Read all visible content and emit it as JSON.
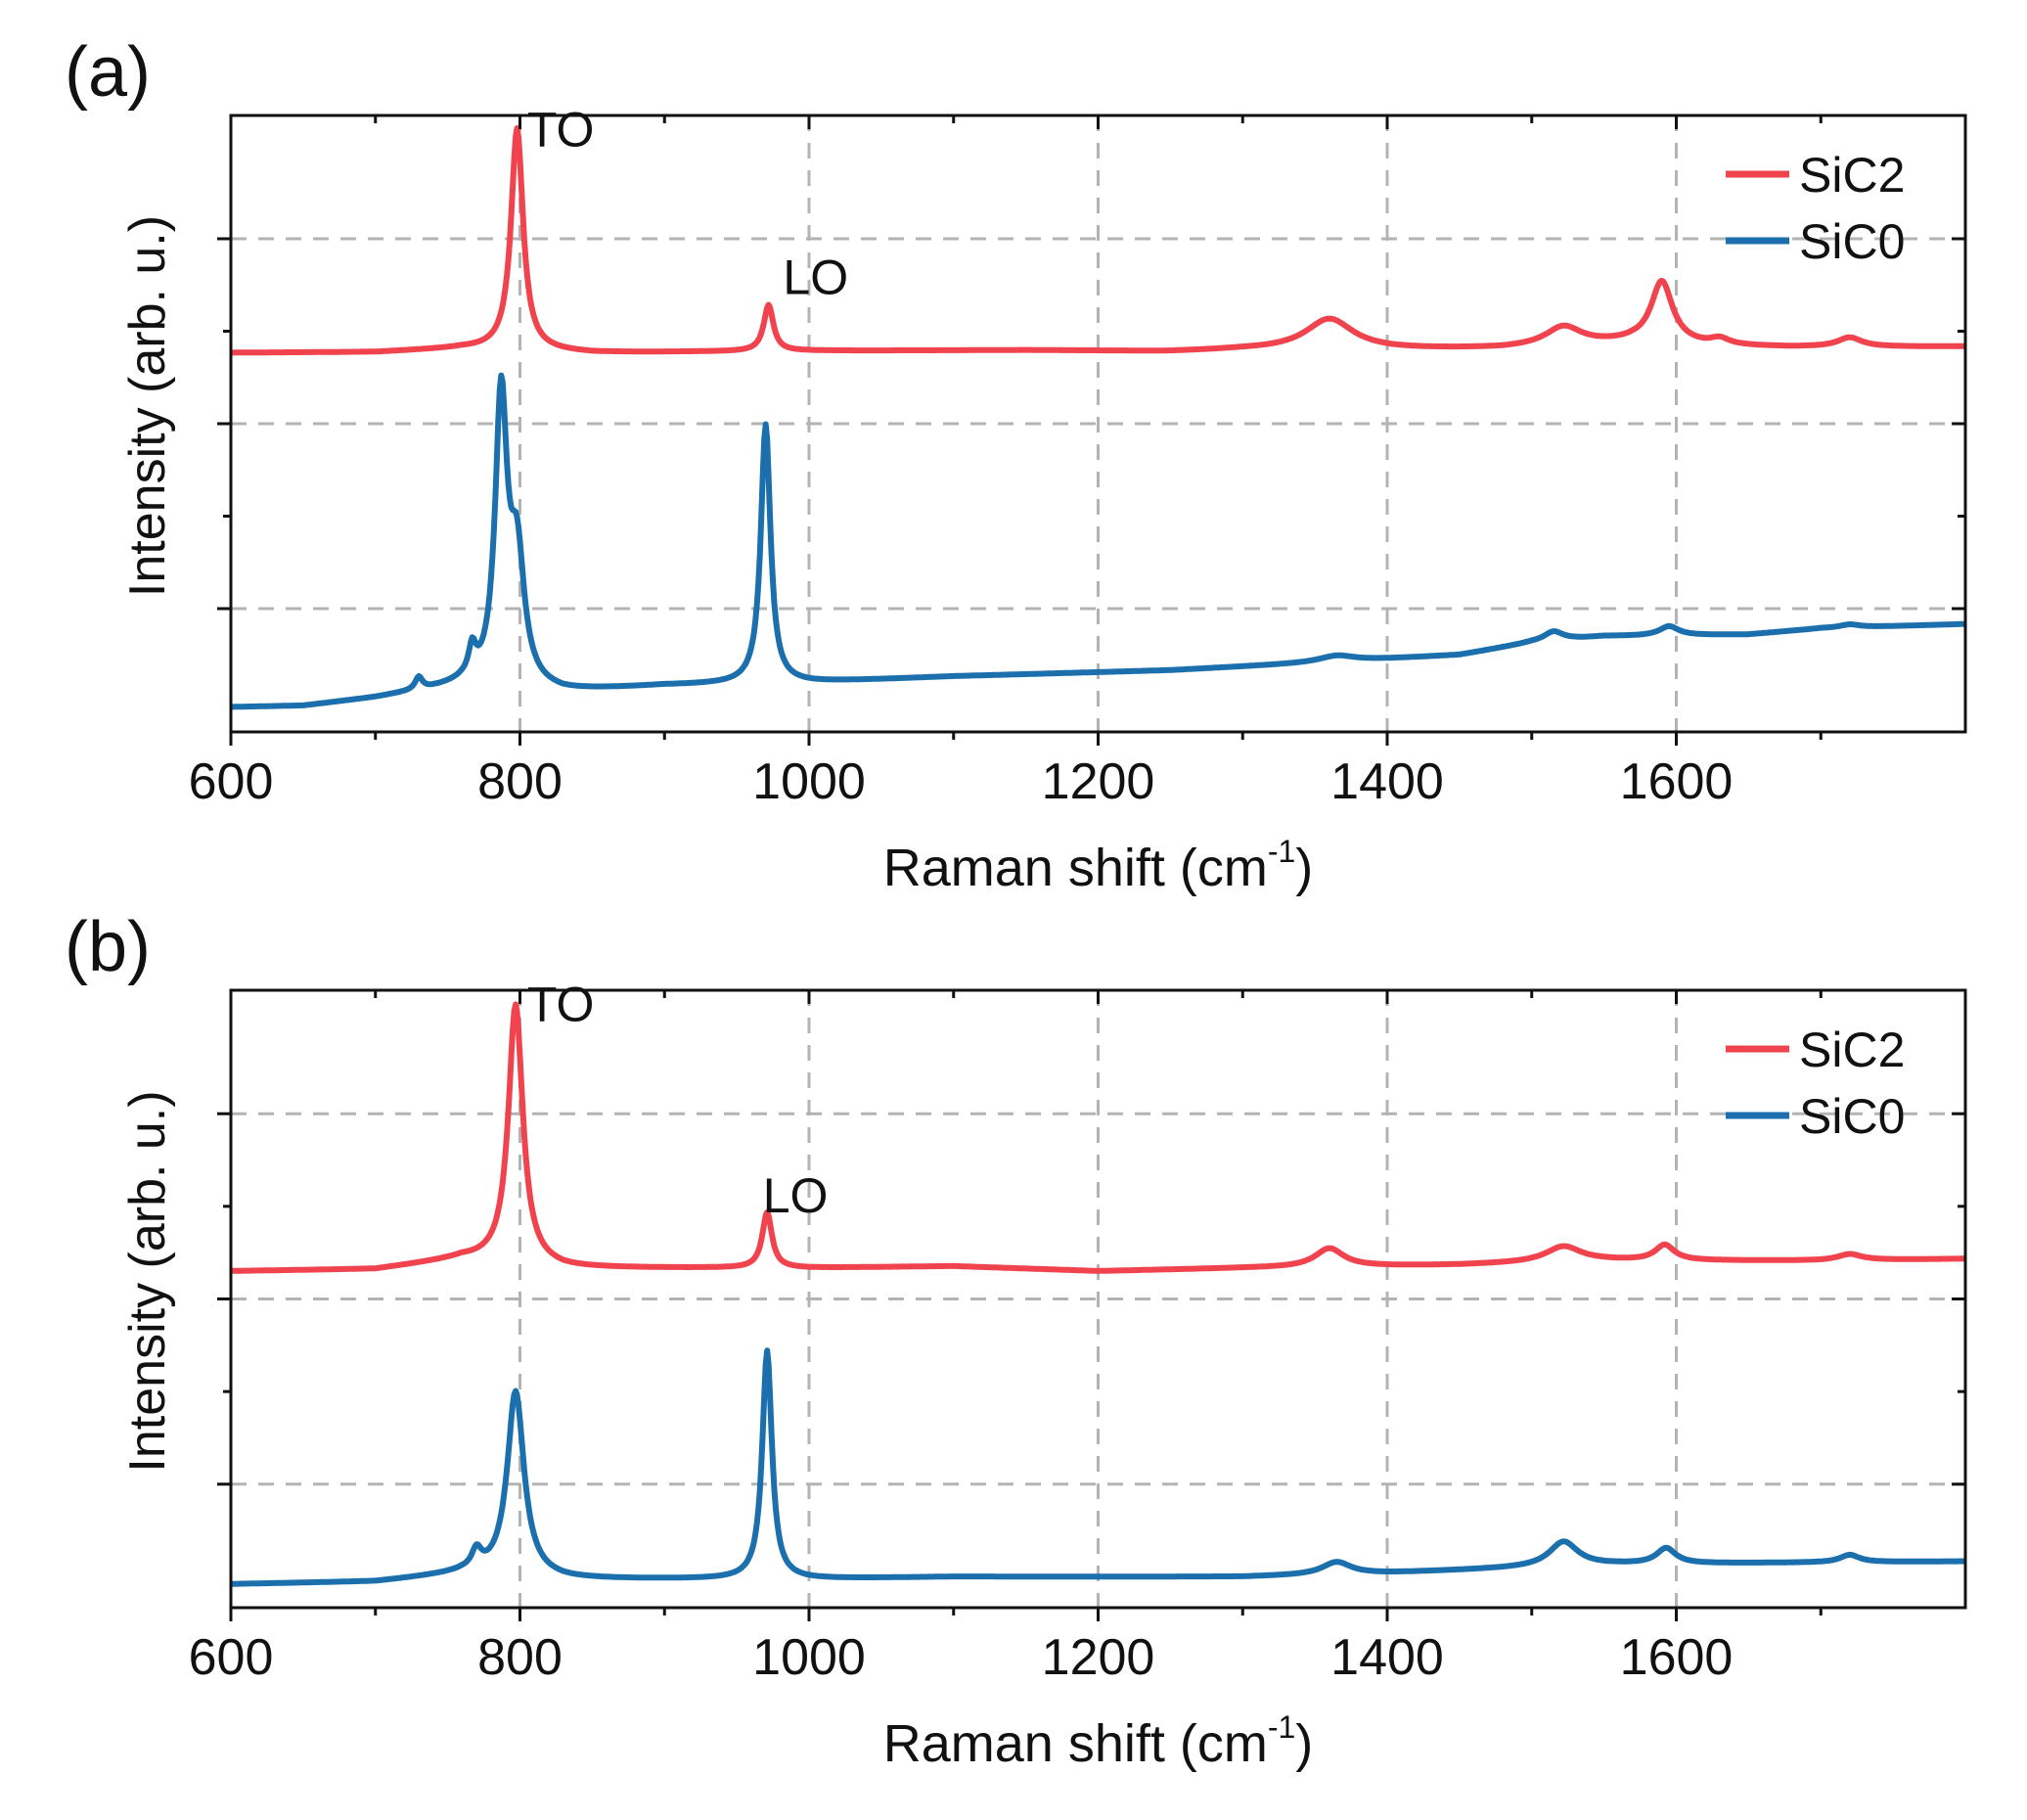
{
  "chart_data": [
    {
      "type": "line",
      "panel_label": "(a)",
      "xlabel": "Raman shift (cm",
      "xlabel_sup": "-1",
      "xlabel_close": ")",
      "ylabel": "Intensity (arb. u.)",
      "xlim": [
        600,
        1800
      ],
      "ylim": [
        0,
        100
      ],
      "xticks": [
        600,
        800,
        1000,
        1200,
        1400,
        1600
      ],
      "xtick_labels": [
        "600",
        "800",
        "1000",
        "1200",
        "1400",
        "1600"
      ],
      "yticks_major": [
        20,
        50,
        80
      ],
      "yticks_minor": [
        35,
        65
      ],
      "grid": true,
      "legend_position": "top-right",
      "annotations": [
        {
          "text": "TO",
          "x": 805,
          "y": 95
        },
        {
          "text": "LO",
          "x": 982,
          "y": 71
        }
      ],
      "series": [
        {
          "name": "SiC2",
          "color": "#f0434d",
          "baseline": [
            [
              600,
              61.5
            ],
            [
              700,
              61.6
            ],
            [
              760,
              62.2
            ],
            [
              850,
              61.5
            ],
            [
              1000,
              61.8
            ],
            [
              1150,
              61.9
            ],
            [
              1250,
              61.7
            ],
            [
              1300,
              62.0
            ],
            [
              1400,
              62.0
            ],
            [
              1480,
              62.2
            ],
            [
              1570,
              63.2
            ],
            [
              1620,
              62.6
            ],
            [
              1680,
              62.4
            ],
            [
              1800,
              62.5
            ]
          ],
          "peaks": [
            {
              "center": 798,
              "height": 36,
              "width": 5
            },
            {
              "center": 972,
              "height": 7.5,
              "width": 4
            },
            {
              "center": 1360,
              "height": 5,
              "width": 20
            },
            {
              "center": 1522,
              "height": 3,
              "width": 15
            },
            {
              "center": 1590,
              "height": 10,
              "width": 9
            },
            {
              "center": 1630,
              "height": 1,
              "width": 8
            },
            {
              "center": 1720,
              "height": 1.5,
              "width": 10
            }
          ]
        },
        {
          "name": "SiC0",
          "color": "#1b6fad",
          "baseline": [
            [
              600,
              4
            ],
            [
              650,
              4.2
            ],
            [
              700,
              5.5
            ],
            [
              760,
              7.5
            ],
            [
              830,
              6.5
            ],
            [
              900,
              7.5
            ],
            [
              1000,
              8
            ],
            [
              1100,
              9
            ],
            [
              1250,
              10
            ],
            [
              1350,
              11.2
            ],
            [
              1450,
              12.5
            ],
            [
              1500,
              14.5
            ],
            [
              1550,
              15.5
            ],
            [
              1650,
              15.8
            ],
            [
              1700,
              16.8
            ],
            [
              1800,
              17.5
            ]
          ],
          "peaks": [
            {
              "center": 787,
              "height": 46,
              "width": 5
            },
            {
              "center": 798,
              "height": 20,
              "width": 6
            },
            {
              "center": 767,
              "height": 4.5,
              "width": 3
            },
            {
              "center": 730,
              "height": 2,
              "width": 3
            },
            {
              "center": 970,
              "height": 42,
              "width": 4
            },
            {
              "center": 1365,
              "height": 1,
              "width": 15
            },
            {
              "center": 1515,
              "height": 1.5,
              "width": 8
            },
            {
              "center": 1595,
              "height": 1.5,
              "width": 8
            },
            {
              "center": 1720,
              "height": 0.5,
              "width": 8
            }
          ]
        }
      ]
    },
    {
      "type": "line",
      "panel_label": "(b)",
      "xlabel": "Raman shift (cm",
      "xlabel_sup": "-1",
      "xlabel_close": ")",
      "ylabel": "Intensity (arb. u.)",
      "xlim": [
        600,
        1800
      ],
      "ylim": [
        0,
        100
      ],
      "xticks": [
        600,
        800,
        1000,
        1200,
        1400,
        1600
      ],
      "xtick_labels": [
        "600",
        "800",
        "1000",
        "1200",
        "1400",
        "1600"
      ],
      "yticks_major": [
        20,
        50,
        80
      ],
      "yticks_minor": [
        35,
        65
      ],
      "grid": true,
      "legend_position": "top-right",
      "annotations": [
        {
          "text": "TO",
          "x": 805,
          "y": 95
        },
        {
          "text": "LO",
          "x": 968,
          "y": 64
        }
      ],
      "series": [
        {
          "name": "SiC2",
          "color": "#f0434d",
          "baseline": [
            [
              600,
              54.5
            ],
            [
              700,
              54.8
            ],
            [
              760,
              56.5
            ],
            [
              830,
              55
            ],
            [
              1000,
              55
            ],
            [
              1100,
              55.3
            ],
            [
              1200,
              54.5
            ],
            [
              1300,
              55
            ],
            [
              1450,
              55.5
            ],
            [
              1550,
              56.2
            ],
            [
              1620,
              56.2
            ],
            [
              1700,
              56.2
            ],
            [
              1800,
              56.5
            ]
          ],
          "peaks": [
            {
              "center": 797,
              "height": 42,
              "width": 6
            },
            {
              "center": 971,
              "height": 9,
              "width": 4
            },
            {
              "center": 1360,
              "height": 3,
              "width": 12
            },
            {
              "center": 1522,
              "height": 2.5,
              "width": 15
            },
            {
              "center": 1592,
              "height": 2.5,
              "width": 8
            },
            {
              "center": 1720,
              "height": 1,
              "width": 10
            }
          ]
        },
        {
          "name": "SiC0",
          "color": "#1b6fad",
          "baseline": [
            [
              600,
              3.8
            ],
            [
              700,
              4.2
            ],
            [
              760,
              5.5
            ],
            [
              830,
              4.6
            ],
            [
              1000,
              4.6
            ],
            [
              1100,
              5
            ],
            [
              1300,
              5
            ],
            [
              1400,
              5.6
            ],
            [
              1500,
              6.5
            ],
            [
              1560,
              7
            ],
            [
              1650,
              7.2
            ],
            [
              1800,
              7.5
            ]
          ],
          "peaks": [
            {
              "center": 797,
              "height": 30,
              "width": 7
            },
            {
              "center": 770,
              "height": 3,
              "width": 4
            },
            {
              "center": 971,
              "height": 37,
              "width": 4
            },
            {
              "center": 1365,
              "height": 2,
              "width": 12
            },
            {
              "center": 1522,
              "height": 4,
              "width": 12
            },
            {
              "center": 1593,
              "height": 2.5,
              "width": 8
            },
            {
              "center": 1720,
              "height": 1.2,
              "width": 8
            }
          ]
        }
      ]
    }
  ],
  "legend": {
    "sic2_label": "SiC2",
    "sic0_label": "SiC0"
  }
}
